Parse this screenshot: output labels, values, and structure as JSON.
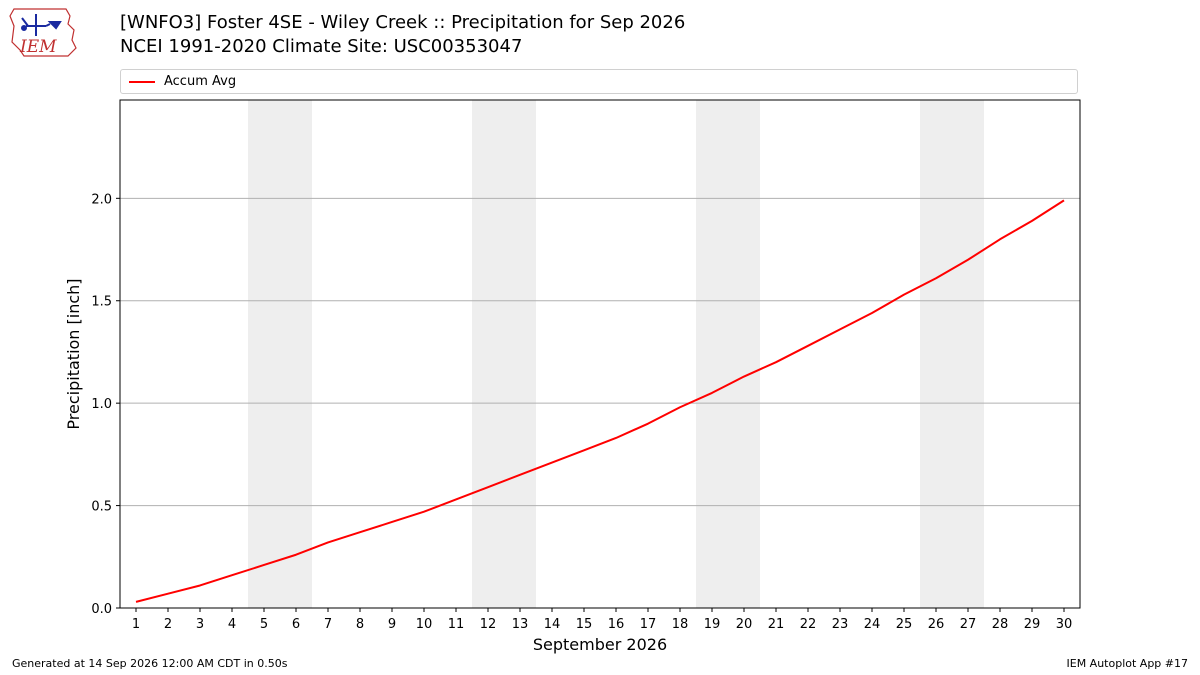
{
  "header": {
    "title_line1": "[WNFO3] Foster 4SE - Wiley Creek :: Precipitation for Sep 2026",
    "title_line2": "NCEI 1991-2020 Climate Site: USC00353047"
  },
  "logo": {
    "text": "IEM"
  },
  "footer": {
    "generated": "Generated at 14 Sep 2026 12:00 AM CDT in 0.50s",
    "app": "IEM Autoplot App #17"
  },
  "chart_data": {
    "type": "line",
    "xlabel": "September 2026",
    "ylabel": "Precipitation [inch]",
    "x": [
      1,
      2,
      3,
      4,
      5,
      6,
      7,
      8,
      9,
      10,
      11,
      12,
      13,
      14,
      15,
      16,
      17,
      18,
      19,
      20,
      21,
      22,
      23,
      24,
      25,
      26,
      27,
      28,
      29,
      30
    ],
    "xlim": [
      0.5,
      30.5
    ],
    "ylim": [
      0,
      2.48
    ],
    "yticks": [
      0.0,
      0.5,
      1.0,
      1.5,
      2.0
    ],
    "ytick_labels": [
      "0.0",
      "0.5",
      "1.0",
      "1.5",
      "2.0"
    ],
    "grid": "horizontal",
    "legend_position": "top",
    "weekend_shading": [
      [
        5,
        6
      ],
      [
        12,
        13
      ],
      [
        19,
        20
      ],
      [
        26,
        27
      ]
    ],
    "series": [
      {
        "name": "Accum Avg",
        "color": "#ff0000",
        "values": [
          0.03,
          0.07,
          0.11,
          0.16,
          0.21,
          0.26,
          0.32,
          0.37,
          0.42,
          0.47,
          0.53,
          0.59,
          0.65,
          0.71,
          0.77,
          0.83,
          0.9,
          0.98,
          1.05,
          1.13,
          1.2,
          1.28,
          1.36,
          1.44,
          1.53,
          1.61,
          1.7,
          1.8,
          1.89,
          1.99
        ]
      }
    ]
  }
}
